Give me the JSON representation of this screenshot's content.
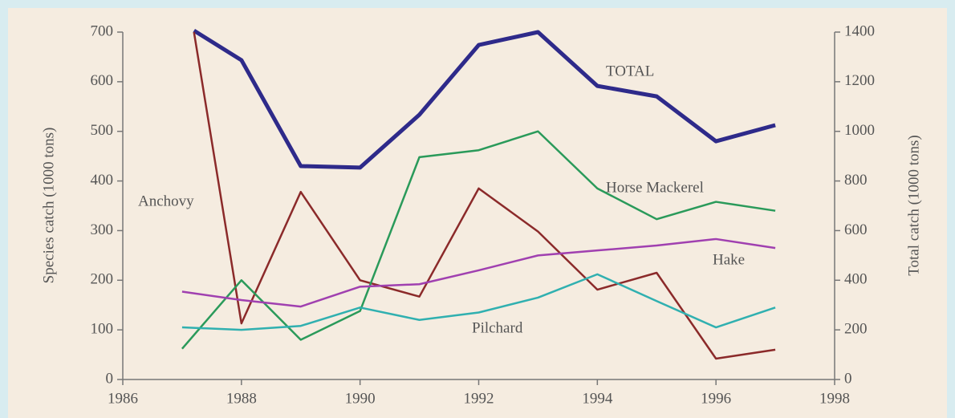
{
  "chart_data": {
    "type": "line",
    "ylabel": "Species catch (1000 tons)",
    "y2label": "Total catch (1000 tons)",
    "xlim": [
      1986,
      1998
    ],
    "xticks": [
      1986,
      1988,
      1990,
      1992,
      1994,
      1996,
      1998
    ],
    "ylim": [
      0,
      700
    ],
    "yticks": [
      0,
      100,
      200,
      300,
      400,
      500,
      600,
      700
    ],
    "y2lim": [
      0,
      1400
    ],
    "y2ticks": [
      0,
      200,
      400,
      600,
      800,
      1000,
      1200,
      1400
    ],
    "series": [
      {
        "name": "TOTAL",
        "color": "#2e2a8a",
        "axis": "y2",
        "x": [
          1987.2,
          1988,
          1989,
          1990,
          1991,
          1992,
          1993,
          1994,
          1995,
          1996,
          1997
        ],
        "values": [
          1406,
          1287,
          860,
          854,
          1067,
          1348,
          1400,
          1183,
          1141,
          960,
          1025
        ]
      },
      {
        "name": "Anchovy",
        "color": "#8b2a2a",
        "x": [
          1987.2,
          1988,
          1989,
          1990,
          1991,
          1992,
          1993,
          1994,
          1995,
          1996,
          1997
        ],
        "values": [
          700,
          113,
          378,
          200,
          167,
          385,
          298,
          181,
          215,
          42,
          60
        ]
      },
      {
        "name": "Horse Mackerel",
        "color": "#2a9a5a",
        "x": [
          1987,
          1988,
          1989,
          1990,
          1991,
          1992,
          1993,
          1994,
          1995,
          1996,
          1997
        ],
        "values": [
          62,
          200,
          80,
          138,
          448,
          462,
          500,
          385,
          323,
          358,
          340
        ]
      },
      {
        "name": "Hake",
        "color": "#a040b0",
        "x": [
          1987,
          1988,
          1989,
          1990,
          1991,
          1992,
          1993,
          1994,
          1995,
          1996,
          1997
        ],
        "values": [
          177,
          160,
          147,
          187,
          192,
          220,
          250,
          260,
          270,
          283,
          265
        ]
      },
      {
        "name": "Pilchard",
        "color": "#30b0b0",
        "x": [
          1987,
          1988,
          1989,
          1990,
          1991,
          1992,
          1993,
          1994,
          1995,
          1996,
          1997
        ],
        "values": [
          105,
          100,
          108,
          145,
          120,
          135,
          165,
          212,
          158,
          105,
          145
        ]
      }
    ]
  }
}
